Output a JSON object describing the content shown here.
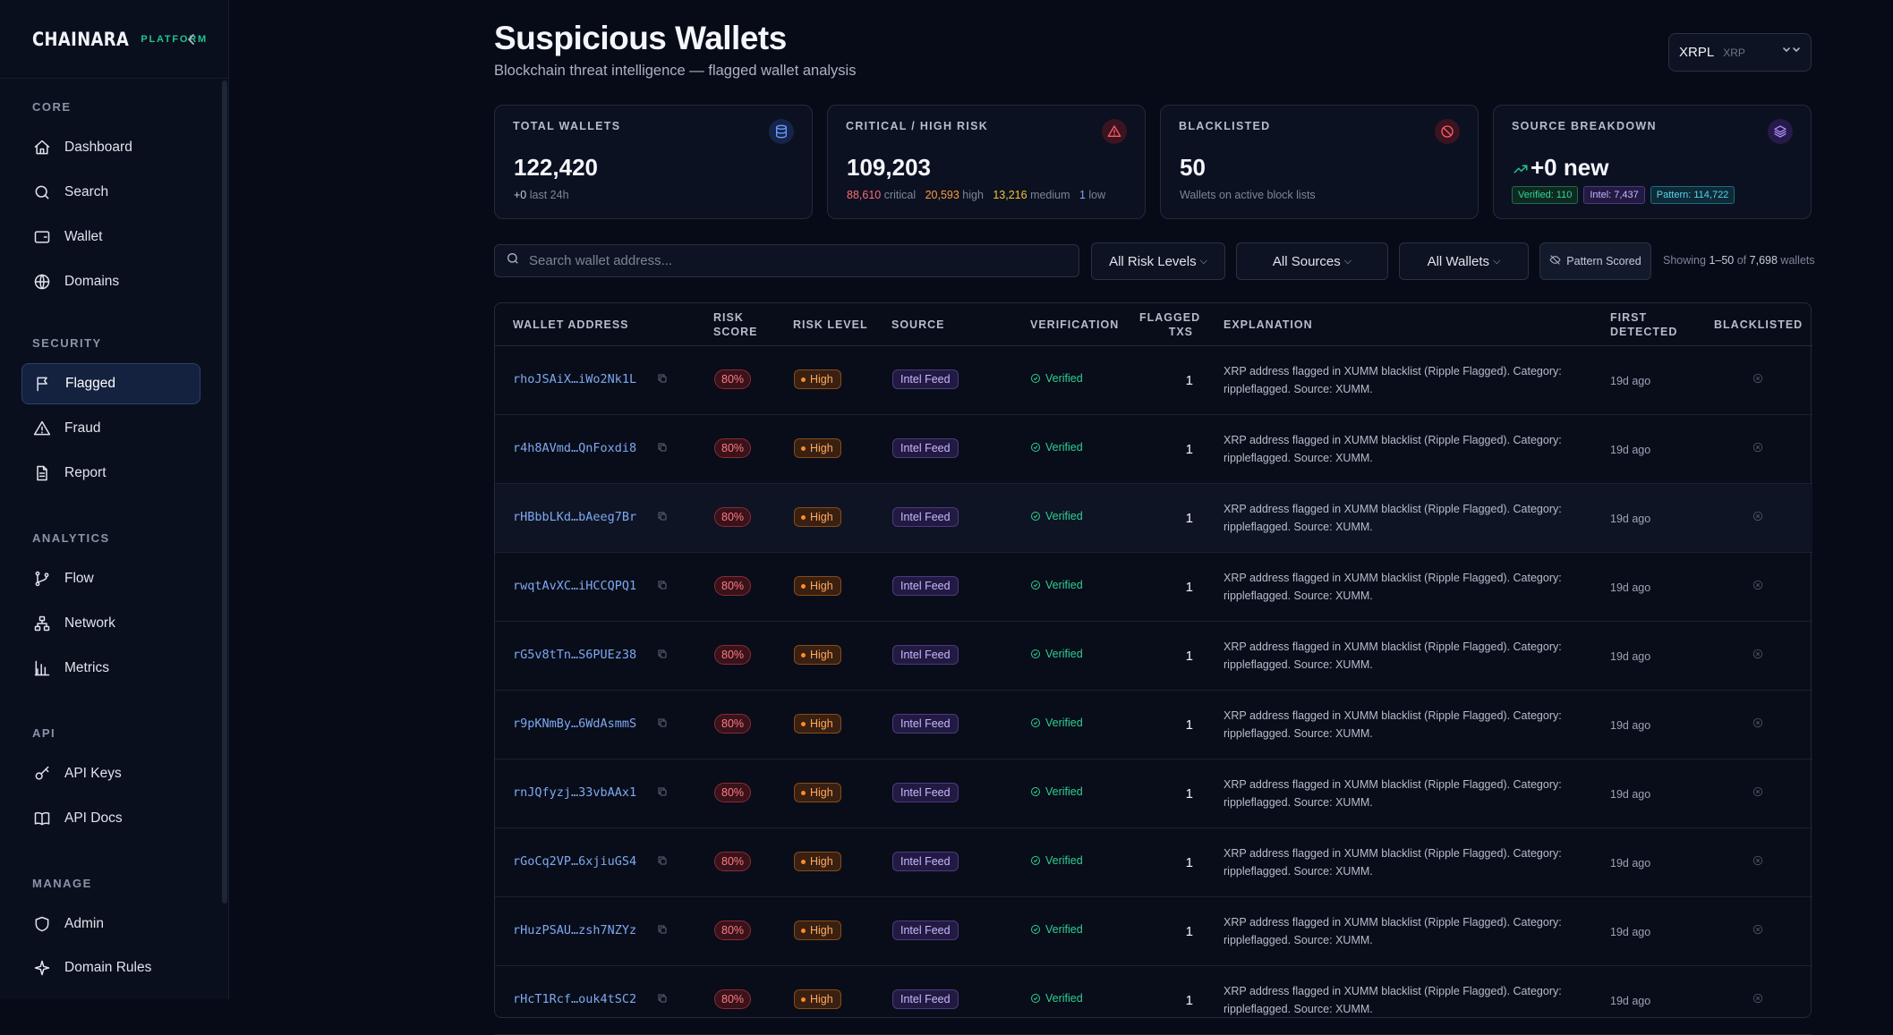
{
  "brand": {
    "logo": "CHAINARA",
    "tag": "PLATFORM"
  },
  "sidebar": {
    "sections": [
      {
        "title": "CORE",
        "items": [
          {
            "label": "Dashboard",
            "icon": "home-icon"
          },
          {
            "label": "Search",
            "icon": "search-icon"
          },
          {
            "label": "Wallet",
            "icon": "wallet-icon"
          },
          {
            "label": "Domains",
            "icon": "globe-icon"
          }
        ]
      },
      {
        "title": "SECURITY",
        "items": [
          {
            "label": "Flagged",
            "icon": "flag-icon",
            "active": true
          },
          {
            "label": "Fraud",
            "icon": "warning-icon"
          },
          {
            "label": "Report",
            "icon": "document-icon"
          }
        ]
      },
      {
        "title": "ANALYTICS",
        "items": [
          {
            "label": "Flow",
            "icon": "git-branch-icon"
          },
          {
            "label": "Network",
            "icon": "network-icon"
          },
          {
            "label": "Metrics",
            "icon": "bar-chart-icon"
          }
        ]
      },
      {
        "title": "API",
        "items": [
          {
            "label": "API Keys",
            "icon": "key-icon"
          },
          {
            "label": "API Docs",
            "icon": "book-icon"
          }
        ]
      },
      {
        "title": "MANAGE",
        "items": [
          {
            "label": "Admin",
            "icon": "shield-icon"
          },
          {
            "label": "Domain Rules",
            "icon": "sparkle-icon"
          }
        ]
      }
    ]
  },
  "header": {
    "title": "Suspicious Wallets",
    "subtitle": "Blockchain threat intelligence — flagged wallet analysis",
    "chain": {
      "name": "XRPL",
      "symbol": "XRP"
    }
  },
  "cards": {
    "total": {
      "title": "TOTAL WALLETS",
      "value": "122,420",
      "delta": "+0",
      "delta_label": "last 24h"
    },
    "risk": {
      "title": "CRITICAL / HIGH RISK",
      "value": "109,203",
      "critical": "88,610",
      "critical_label": "critical",
      "high": "20,593",
      "high_label": "high",
      "medium": "13,216",
      "medium_label": "medium",
      "low": "1",
      "low_label": "low"
    },
    "blacklisted": {
      "title": "BLACKLISTED",
      "value": "50",
      "sub": "Wallets on active block lists"
    },
    "source": {
      "title": "SOURCE BREAKDOWN",
      "value": "+0 new",
      "verified": "Verified: 110",
      "intel": "Intel: 7,437",
      "pattern": "Pattern: 114,722"
    }
  },
  "toolbar": {
    "search_placeholder": "Search wallet address...",
    "risk_filter": "All Risk Levels",
    "source_filter": "All Sources",
    "wallet_filter": "All Wallets",
    "pattern_button": "Pattern Scored",
    "showing_prefix": "Showing",
    "showing_range": "1–50",
    "showing_of": "of",
    "showing_total": "7,698",
    "showing_suffix": "wallets"
  },
  "table": {
    "headers": {
      "address": "WALLET ADDRESS",
      "score_1": "RISK",
      "score_2": "SCORE",
      "level": "RISK LEVEL",
      "source": "SOURCE",
      "verification": "VERIFICATION",
      "txs_1": "FLAGGED",
      "txs_2": "TXS",
      "explanation": "EXPLANATION",
      "first_1": "FIRST",
      "first_2": "DETECTED",
      "blacklisted": "BLACKLISTED"
    },
    "rows": [
      {
        "address": "rhoJSAiX…iWo2Nk1L",
        "score": "80%",
        "level": "High",
        "source": "Intel Feed",
        "verification": "Verified",
        "txs": "1",
        "explanation": "XRP address flagged in XUMM blacklist (Ripple Flagged). Category: rippleflagged. Source: XUMM.",
        "first": "19d ago"
      },
      {
        "address": "r4h8AVmd…QnFoxdi8",
        "score": "80%",
        "level": "High",
        "source": "Intel Feed",
        "verification": "Verified",
        "txs": "1",
        "explanation": "XRP address flagged in XUMM blacklist (Ripple Flagged). Category: rippleflagged. Source: XUMM.",
        "first": "19d ago"
      },
      {
        "address": "rHBbbLKd…bAeeg7Br",
        "score": "80%",
        "level": "High",
        "source": "Intel Feed",
        "verification": "Verified",
        "txs": "1",
        "explanation": "XRP address flagged in XUMM blacklist (Ripple Flagged). Category: rippleflagged. Source: XUMM.",
        "first": "19d ago"
      },
      {
        "address": "rwqtAvXC…iHCCQPQ1",
        "score": "80%",
        "level": "High",
        "source": "Intel Feed",
        "verification": "Verified",
        "txs": "1",
        "explanation": "XRP address flagged in XUMM blacklist (Ripple Flagged). Category: rippleflagged. Source: XUMM.",
        "first": "19d ago"
      },
      {
        "address": "rG5v8tTn…S6PUEz38",
        "score": "80%",
        "level": "High",
        "source": "Intel Feed",
        "verification": "Verified",
        "txs": "1",
        "explanation": "XRP address flagged in XUMM blacklist (Ripple Flagged). Category: rippleflagged. Source: XUMM.",
        "first": "19d ago"
      },
      {
        "address": "r9pKNmBy…6WdAsmmS",
        "score": "80%",
        "level": "High",
        "source": "Intel Feed",
        "verification": "Verified",
        "txs": "1",
        "explanation": "XRP address flagged in XUMM blacklist (Ripple Flagged). Category: rippleflagged. Source: XUMM.",
        "first": "19d ago"
      },
      {
        "address": "rnJQfyzj…33vbAAx1",
        "score": "80%",
        "level": "High",
        "source": "Intel Feed",
        "verification": "Verified",
        "txs": "1",
        "explanation": "XRP address flagged in XUMM blacklist (Ripple Flagged). Category: rippleflagged. Source: XUMM.",
        "first": "19d ago"
      },
      {
        "address": "rGoCq2VP…6xjiuGS4",
        "score": "80%",
        "level": "High",
        "source": "Intel Feed",
        "verification": "Verified",
        "txs": "1",
        "explanation": "XRP address flagged in XUMM blacklist (Ripple Flagged). Category: rippleflagged. Source: XUMM.",
        "first": "19d ago"
      },
      {
        "address": "rHuzPSAU…zsh7NZYz",
        "score": "80%",
        "level": "High",
        "source": "Intel Feed",
        "verification": "Verified",
        "txs": "1",
        "explanation": "XRP address flagged in XUMM blacklist (Ripple Flagged). Category: rippleflagged. Source: XUMM.",
        "first": "19d ago"
      },
      {
        "address": "rHcT1Rcf…ouk4tSC2",
        "score": "80%",
        "level": "High",
        "source": "Intel Feed",
        "verification": "Verified",
        "txs": "1",
        "explanation": "XRP address flagged in XUMM blacklist (Ripple Flagged). Category: rippleflagged. Source: XUMM.",
        "first": "19d ago"
      }
    ]
  },
  "colors": {
    "accent": "#22c38e",
    "critical": "#ff5a66",
    "high": "#ff9a3c",
    "medium": "#f4c430",
    "low": "#7fa8f0"
  }
}
